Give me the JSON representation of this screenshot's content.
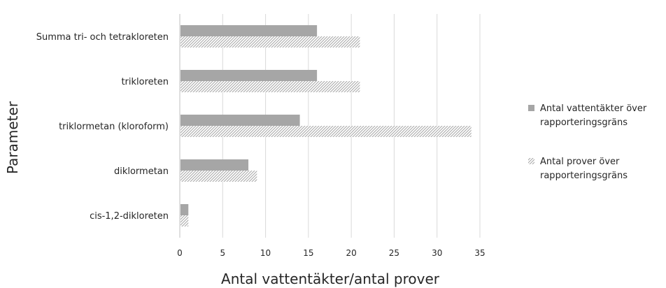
{
  "chart_data": {
    "type": "bar",
    "orientation": "horizontal",
    "categories": [
      "Summa tri- och tetrakloreten",
      "trikloreten",
      "triklormetan (kloroform)",
      "diklormetan",
      "cis-1,2-dikloreten"
    ],
    "series": [
      {
        "name_lines": [
          "Antal vattentäkter över",
          "rapporteringsgräns"
        ],
        "values": [
          16,
          16,
          14,
          8,
          1
        ],
        "color": "#a6a6a6",
        "pattern": "solid"
      },
      {
        "name_lines": [
          "Antal prover över",
          "rapporteringsgräns"
        ],
        "values": [
          21,
          21,
          34,
          9,
          1
        ],
        "color": "#a6a6a6",
        "pattern": "diagonal-hatch"
      }
    ],
    "xlabel": "Antal vattentäkter/antal prover",
    "ylabel": "Parameter",
    "xlim": [
      0,
      35
    ],
    "xticks": [
      0,
      5,
      10,
      15,
      20,
      25,
      30,
      35
    ],
    "grid": "vertical",
    "legend": "right"
  }
}
